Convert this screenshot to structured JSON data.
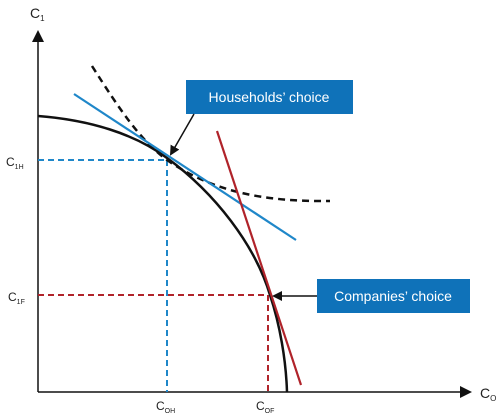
{
  "axes": {
    "y_label_main": "C",
    "y_label_sub": "1",
    "x_label_main": "C",
    "x_label_sub": "O"
  },
  "ticks": {
    "c1h_main": "C",
    "c1h_sub": "1H",
    "c1f_main": "C",
    "c1f_sub": "1F",
    "coh_main": "C",
    "coh_sub": "OH",
    "cof_main": "C",
    "cof_sub": "OF"
  },
  "callouts": {
    "households": "Households’ choice",
    "companies": "Companies’ choice"
  },
  "colors": {
    "axis": "#111111",
    "frontier_curve": "#111111",
    "indifference_curve": "#111111",
    "household_tangent": "#1f87c9",
    "household_guides": "#1f87c9",
    "company_tangent": "#b0232a",
    "company_guides": "#b0232a",
    "callout_fill": "#0f72b9",
    "callout_text": "#ffffff"
  }
}
